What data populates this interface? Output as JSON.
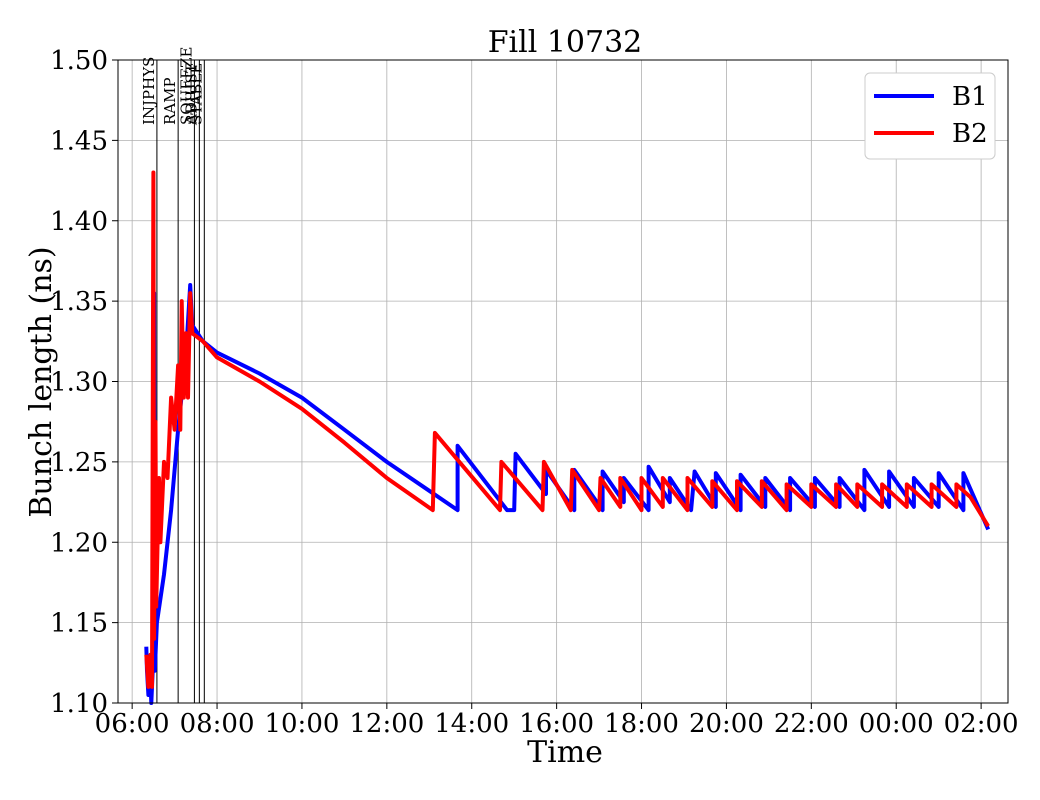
{
  "chart_data": {
    "type": "line",
    "title": "Fill 10732",
    "xlabel": "Time",
    "ylabel": "Bunch length (ns)",
    "ylim": [
      1.1,
      1.5
    ],
    "y_ticks": [
      1.1,
      1.15,
      1.2,
      1.25,
      1.3,
      1.35,
      1.4,
      1.45,
      1.5
    ],
    "x_ticks": [
      "06:00",
      "08:00",
      "10:00",
      "12:00",
      "14:00",
      "16:00",
      "18:00",
      "20:00",
      "22:00",
      "00:00",
      "02:00"
    ],
    "grid": true,
    "legend_position": "top-right",
    "beam_modes": [
      {
        "label": "INJPHYS",
        "time": "06:35"
      },
      {
        "label": "RAMP",
        "time": "07:05"
      },
      {
        "label": "SQUEEZE",
        "time": "07:28"
      },
      {
        "label": "ADJUST",
        "time": "07:35"
      },
      {
        "label": "STABLE",
        "time": "07:42"
      }
    ],
    "series": [
      {
        "name": "B1",
        "color": "#0000ff",
        "points": [
          [
            "06:20",
            1.135
          ],
          [
            "06:21",
            1.12
          ],
          [
            "06:23",
            1.105
          ],
          [
            "06:25",
            1.125
          ],
          [
            "06:27",
            1.1
          ],
          [
            "06:30",
            1.13
          ],
          [
            "06:31",
            1.355
          ],
          [
            "06:32",
            1.12
          ],
          [
            "06:35",
            1.15
          ],
          [
            "06:45",
            1.18
          ],
          [
            "06:55",
            1.22
          ],
          [
            "07:05",
            1.27
          ],
          [
            "07:12",
            1.3
          ],
          [
            "07:18",
            1.33
          ],
          [
            "07:22",
            1.36
          ],
          [
            "07:25",
            1.335
          ],
          [
            "07:40",
            1.325
          ],
          [
            "08:00",
            1.318
          ],
          [
            "09:00",
            1.305
          ],
          [
            "10:00",
            1.29
          ],
          [
            "11:00",
            1.27
          ],
          [
            "12:00",
            1.25
          ],
          [
            "13:00",
            1.232
          ],
          [
            "13:40",
            1.22
          ],
          [
            "13:40",
            1.26
          ],
          [
            "14:50",
            1.22
          ],
          [
            "15:00",
            1.22
          ],
          [
            "15:02",
            1.255
          ],
          [
            "15:45",
            1.23
          ],
          [
            "15:45",
            1.245
          ],
          [
            "16:25",
            1.22
          ],
          [
            "16:25",
            1.245
          ],
          [
            "17:05",
            1.22
          ],
          [
            "17:05",
            1.244
          ],
          [
            "17:35",
            1.225
          ],
          [
            "17:35",
            1.24
          ],
          [
            "18:10",
            1.22
          ],
          [
            "18:10",
            1.247
          ],
          [
            "18:40",
            1.225
          ],
          [
            "18:40",
            1.24
          ],
          [
            "19:10",
            1.22
          ],
          [
            "19:15",
            1.244
          ],
          [
            "19:45",
            1.222
          ],
          [
            "19:45",
            1.243
          ],
          [
            "20:20",
            1.22
          ],
          [
            "20:20",
            1.242
          ],
          [
            "20:55",
            1.222
          ],
          [
            "20:55",
            1.24
          ],
          [
            "21:30",
            1.22
          ],
          [
            "21:30",
            1.24
          ],
          [
            "22:05",
            1.222
          ],
          [
            "22:05",
            1.24
          ],
          [
            "22:40",
            1.222
          ],
          [
            "22:40",
            1.24
          ],
          [
            "23:15",
            1.22
          ],
          [
            "23:15",
            1.245
          ],
          [
            "23:50",
            1.222
          ],
          [
            "23:50",
            1.244
          ],
          [
            "00:25",
            1.222
          ],
          [
            "00:25",
            1.24
          ],
          [
            "01:00",
            1.222
          ],
          [
            "01:00",
            1.243
          ],
          [
            "01:35",
            1.22
          ],
          [
            "01:35",
            1.243
          ],
          [
            "02:10",
            1.208
          ]
        ]
      },
      {
        "name": "B2",
        "color": "#ff0000",
        "points": [
          [
            "06:20",
            1.13
          ],
          [
            "06:23",
            1.11
          ],
          [
            "06:26",
            1.13
          ],
          [
            "06:28",
            1.11
          ],
          [
            "06:30",
            1.43
          ],
          [
            "06:31",
            1.14
          ],
          [
            "06:33",
            1.275
          ],
          [
            "06:34",
            1.16
          ],
          [
            "06:38",
            1.24
          ],
          [
            "06:40",
            1.2
          ],
          [
            "06:45",
            1.25
          ],
          [
            "06:50",
            1.24
          ],
          [
            "06:55",
            1.29
          ],
          [
            "07:00",
            1.27
          ],
          [
            "07:05",
            1.31
          ],
          [
            "07:08",
            1.27
          ],
          [
            "07:10",
            1.35
          ],
          [
            "07:13",
            1.29
          ],
          [
            "07:16",
            1.33
          ],
          [
            "07:19",
            1.29
          ],
          [
            "07:22",
            1.355
          ],
          [
            "07:25",
            1.33
          ],
          [
            "07:40",
            1.325
          ],
          [
            "08:00",
            1.315
          ],
          [
            "09:00",
            1.3
          ],
          [
            "10:00",
            1.283
          ],
          [
            "11:00",
            1.262
          ],
          [
            "12:00",
            1.24
          ],
          [
            "13:05",
            1.22
          ],
          [
            "13:08",
            1.268
          ],
          [
            "14:40",
            1.22
          ],
          [
            "14:42",
            1.25
          ],
          [
            "15:40",
            1.22
          ],
          [
            "15:42",
            1.25
          ],
          [
            "16:20",
            1.22
          ],
          [
            "16:22",
            1.245
          ],
          [
            "17:00",
            1.22
          ],
          [
            "17:02",
            1.24
          ],
          [
            "17:30",
            1.222
          ],
          [
            "17:30",
            1.24
          ],
          [
            "18:00",
            1.22
          ],
          [
            "18:00",
            1.24
          ],
          [
            "18:30",
            1.222
          ],
          [
            "18:30",
            1.24
          ],
          [
            "19:05",
            1.22
          ],
          [
            "19:05",
            1.24
          ],
          [
            "19:40",
            1.222
          ],
          [
            "19:40",
            1.238
          ],
          [
            "20:15",
            1.22
          ],
          [
            "20:15",
            1.238
          ],
          [
            "20:50",
            1.222
          ],
          [
            "20:50",
            1.238
          ],
          [
            "21:25",
            1.22
          ],
          [
            "21:25",
            1.236
          ],
          [
            "22:00",
            1.222
          ],
          [
            "22:00",
            1.236
          ],
          [
            "22:35",
            1.222
          ],
          [
            "22:35",
            1.236
          ],
          [
            "23:05",
            1.222
          ],
          [
            "23:05",
            1.236
          ],
          [
            "23:40",
            1.222
          ],
          [
            "23:40",
            1.236
          ],
          [
            "00:15",
            1.222
          ],
          [
            "00:15",
            1.236
          ],
          [
            "00:50",
            1.222
          ],
          [
            "00:50",
            1.236
          ],
          [
            "01:25",
            1.222
          ],
          [
            "01:25",
            1.236
          ],
          [
            "01:45",
            1.228
          ],
          [
            "02:10",
            1.21
          ]
        ]
      }
    ]
  }
}
